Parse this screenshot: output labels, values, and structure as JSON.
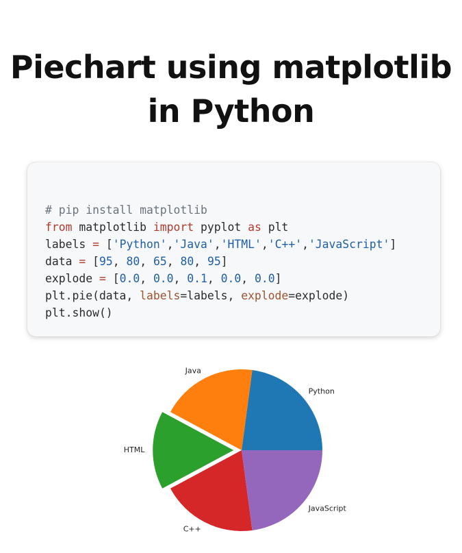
{
  "title": {
    "line1": "Piechart using matplotlib",
    "line2": "in Python"
  },
  "code": {
    "lines": [
      [
        {
          "t": "# pip install matplotlib",
          "c": "comment"
        }
      ],
      [
        {
          "t": "from",
          "c": "kw"
        },
        {
          "t": " matplotlib ",
          "c": "plain"
        },
        {
          "t": "import",
          "c": "kw"
        },
        {
          "t": " pyplot ",
          "c": "plain"
        },
        {
          "t": "as",
          "c": "kw"
        },
        {
          "t": " plt",
          "c": "plain"
        }
      ],
      [
        {
          "t": "labels ",
          "c": "plain"
        },
        {
          "t": "=",
          "c": "op"
        },
        {
          "t": " [",
          "c": "plain"
        },
        {
          "t": "'Python'",
          "c": "str"
        },
        {
          "t": ",",
          "c": "plain"
        },
        {
          "t": "'Java'",
          "c": "str"
        },
        {
          "t": ",",
          "c": "plain"
        },
        {
          "t": "'HTML'",
          "c": "str"
        },
        {
          "t": ",",
          "c": "plain"
        },
        {
          "t": "'C++'",
          "c": "str"
        },
        {
          "t": ",",
          "c": "plain"
        },
        {
          "t": "'JavaScript'",
          "c": "str"
        },
        {
          "t": "]",
          "c": "plain"
        }
      ],
      [
        {
          "t": "data ",
          "c": "plain"
        },
        {
          "t": "=",
          "c": "op"
        },
        {
          "t": " [",
          "c": "plain"
        },
        {
          "t": "95",
          "c": "num"
        },
        {
          "t": ", ",
          "c": "plain"
        },
        {
          "t": "80",
          "c": "num"
        },
        {
          "t": ", ",
          "c": "plain"
        },
        {
          "t": "65",
          "c": "num"
        },
        {
          "t": ", ",
          "c": "plain"
        },
        {
          "t": "80",
          "c": "num"
        },
        {
          "t": ", ",
          "c": "plain"
        },
        {
          "t": "95",
          "c": "num"
        },
        {
          "t": "]",
          "c": "plain"
        }
      ],
      [
        {
          "t": "explode ",
          "c": "plain"
        },
        {
          "t": "=",
          "c": "op"
        },
        {
          "t": " [",
          "c": "plain"
        },
        {
          "t": "0.0",
          "c": "num"
        },
        {
          "t": ", ",
          "c": "plain"
        },
        {
          "t": "0.0",
          "c": "num"
        },
        {
          "t": ", ",
          "c": "plain"
        },
        {
          "t": "0.1",
          "c": "num"
        },
        {
          "t": ", ",
          "c": "plain"
        },
        {
          "t": "0.0",
          "c": "num"
        },
        {
          "t": ", ",
          "c": "plain"
        },
        {
          "t": "0.0",
          "c": "num"
        },
        {
          "t": "]",
          "c": "plain"
        }
      ],
      [
        {
          "t": "plt.pie(data, ",
          "c": "plain"
        },
        {
          "t": "labels",
          "c": "kwarg"
        },
        {
          "t": "=labels, ",
          "c": "plain"
        },
        {
          "t": "explode",
          "c": "kwarg"
        },
        {
          "t": "=explode)",
          "c": "plain"
        }
      ],
      [
        {
          "t": "plt.show()",
          "c": "plain"
        }
      ]
    ]
  },
  "chart_data": {
    "type": "pie",
    "labels": [
      "Python",
      "Java",
      "HTML",
      "C++",
      "JavaScript"
    ],
    "values": [
      95,
      80,
      65,
      80,
      95
    ],
    "explode": [
      0.0,
      0.0,
      0.1,
      0.0,
      0.0
    ],
    "colors": [
      "#1f77b4",
      "#ff7f0e",
      "#2ca02c",
      "#d62728",
      "#9467bd"
    ],
    "startangle": 0,
    "direction": "counterclockwise"
  }
}
